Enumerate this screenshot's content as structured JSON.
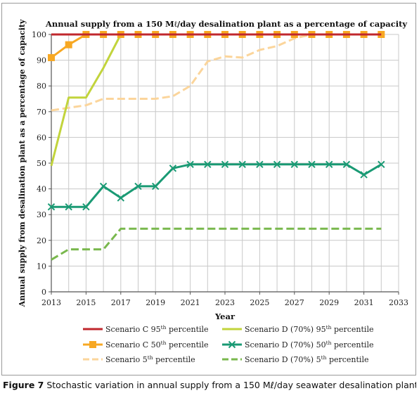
{
  "chart_data": {
    "type": "line",
    "title": "Annual supply from a 150 Mℓ/day desalination plant as a percentage of capacity",
    "xlabel": "Year",
    "ylabel": "Annual supply from desalination plant as a percentage of capacity",
    "xlim": [
      2013,
      2033
    ],
    "ylim": [
      0,
      100
    ],
    "xticks": [
      "2013",
      "2015",
      "2017",
      "2019",
      "2021",
      "2023",
      "2025",
      "2027",
      "2029",
      "2031",
      "2033"
    ],
    "yticks": [
      "0",
      "10",
      "20",
      "30",
      "40",
      "50",
      "60",
      "70",
      "80",
      "90",
      "100"
    ],
    "grid": true,
    "legend_position": "bottom",
    "series": [
      {
        "name": "Scenario C 95th percentile",
        "legend_parts": [
          "Scenario C 95",
          "th",
          " percentile"
        ],
        "color": "#c0272d",
        "dash": "solid",
        "marker": "none",
        "x": [
          2013,
          2014,
          2015,
          2016,
          2017,
          2018,
          2019,
          2020,
          2021,
          2022,
          2023,
          2024,
          2025,
          2026,
          2027,
          2028,
          2029,
          2030,
          2031,
          2032
        ],
        "y": [
          100,
          100,
          100,
          100,
          100,
          100,
          100,
          100,
          100,
          100,
          100,
          100,
          100,
          100,
          100,
          100,
          100,
          100,
          100,
          100
        ]
      },
      {
        "name": "Scenario C 50th percentile",
        "legend_parts": [
          "Scenario C 50",
          "th",
          " percentile"
        ],
        "color": "#f7a823",
        "dash": "solid",
        "marker": "square",
        "x": [
          2013,
          2014,
          2015,
          2016,
          2017,
          2018,
          2019,
          2020,
          2021,
          2022,
          2023,
          2024,
          2025,
          2026,
          2027,
          2028,
          2029,
          2030,
          2031,
          2032
        ],
        "y": [
          91,
          96,
          100,
          100,
          100,
          100,
          100,
          100,
          100,
          100,
          100,
          100,
          100,
          100,
          100,
          100,
          100,
          100,
          100,
          100
        ]
      },
      {
        "name": "Scenario 5th percentile",
        "legend_parts": [
          "Scenario 5",
          "th",
          " percentile"
        ],
        "color": "#fbd59b",
        "dash": "dashed",
        "marker": "none",
        "x": [
          2013,
          2014,
          2015,
          2016,
          2017,
          2018,
          2019,
          2020,
          2021,
          2022,
          2023,
          2024,
          2025,
          2026,
          2027,
          2028
        ],
        "y": [
          70.5,
          71.5,
          72.5,
          75,
          75,
          75,
          75,
          76,
          80,
          89.5,
          91.5,
          91,
          94,
          95.5,
          98.5,
          100
        ]
      },
      {
        "name": "Scenario D (70%) 95th percentile",
        "legend_parts": [
          "Scenario D (70%) 95",
          "th",
          " percentile"
        ],
        "color": "#c2d43c",
        "dash": "solid",
        "marker": "none",
        "x": [
          2013,
          2014,
          2015,
          2016,
          2017
        ],
        "y": [
          49,
          75.5,
          75.5,
          87,
          100
        ]
      },
      {
        "name": "Scenario D (70%) 50th percentile",
        "legend_parts": [
          "Scenario D (70%) 50",
          "th",
          " percentile"
        ],
        "color": "#1a9a74",
        "dash": "solid",
        "marker": "x",
        "x": [
          2013,
          2014,
          2015,
          2016,
          2017,
          2018,
          2019,
          2020,
          2021,
          2022,
          2023,
          2024,
          2025,
          2026,
          2027,
          2028,
          2029,
          2030,
          2031,
          2032
        ],
        "y": [
          33,
          33,
          33,
          41,
          36.5,
          41,
          41,
          48,
          49.5,
          49.5,
          49.5,
          49.5,
          49.5,
          49.5,
          49.5,
          49.5,
          49.5,
          49.5,
          45.5,
          49.5
        ]
      },
      {
        "name": "Scenario D (70%) 5th percentile",
        "legend_parts": [
          "Scenario D (70%) 5",
          "th",
          " percentile"
        ],
        "color": "#79b84d",
        "dash": "dashed",
        "marker": "none",
        "x": [
          2013,
          2014,
          2015,
          2016,
          2017,
          2018,
          2019,
          2020,
          2021,
          2022,
          2023,
          2024,
          2025,
          2026,
          2027,
          2028,
          2029,
          2030,
          2031,
          2032
        ],
        "y": [
          12.5,
          16.5,
          16.5,
          16.5,
          24.5,
          24.5,
          24.5,
          24.5,
          24.5,
          24.5,
          24.5,
          24.5,
          24.5,
          24.5,
          24.5,
          24.5,
          24.5,
          24.5,
          24.5,
          24.5
        ]
      }
    ]
  },
  "caption": {
    "label": "Figure 7",
    "text": " Stochastic variation in annual supply from a 150 Mℓ/day seawater desalination plant"
  }
}
